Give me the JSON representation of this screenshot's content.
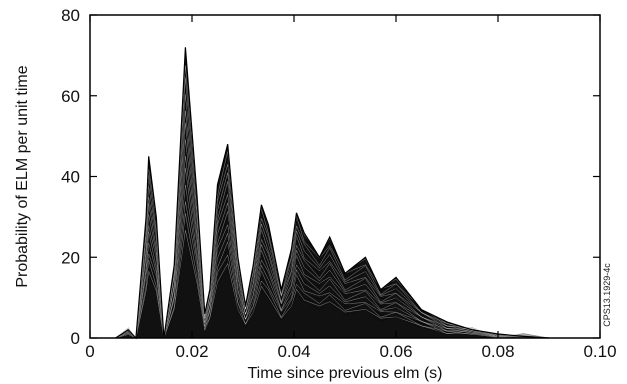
{
  "chart_data": {
    "type": "line",
    "title": "",
    "xlabel": "Time since previous elm (s)",
    "ylabel": "Probability of ELM per unit time",
    "xlim": [
      0,
      0.1
    ],
    "ylim": [
      0,
      80
    ],
    "x_ticks": [
      "0",
      "0.02",
      "0.04",
      "0.06",
      "0.08",
      "0.10"
    ],
    "y_ticks": [
      "0",
      "20",
      "40",
      "60",
      "80"
    ],
    "grid": false,
    "line_color": "#000000",
    "peaks": [
      {
        "x": 0.0115,
        "y": 45
      },
      {
        "x": 0.0187,
        "y": 72
      },
      {
        "x": 0.027,
        "y": 48
      },
      {
        "x": 0.0336,
        "y": 33
      },
      {
        "x": 0.0405,
        "y": 31
      },
      {
        "x": 0.047,
        "y": 25
      },
      {
        "x": 0.054,
        "y": 20
      },
      {
        "x": 0.06,
        "y": 15
      }
    ],
    "series": [
      {
        "values": [
          [
            0.005,
            0
          ],
          [
            0.0075,
            2
          ],
          [
            0.009,
            0
          ],
          [
            0.011,
            30
          ],
          [
            0.0115,
            45
          ],
          [
            0.013,
            30
          ],
          [
            0.0145,
            0
          ],
          [
            0.0165,
            18
          ],
          [
            0.0187,
            72
          ],
          [
            0.021,
            35
          ],
          [
            0.0225,
            6
          ],
          [
            0.0235,
            12
          ],
          [
            0.025,
            38
          ],
          [
            0.027,
            48
          ],
          [
            0.029,
            20
          ],
          [
            0.0305,
            8
          ],
          [
            0.032,
            18
          ],
          [
            0.0336,
            33
          ],
          [
            0.035,
            28
          ],
          [
            0.0375,
            12
          ],
          [
            0.0395,
            22
          ],
          [
            0.0405,
            31
          ],
          [
            0.042,
            26
          ],
          [
            0.045,
            20
          ],
          [
            0.047,
            25
          ],
          [
            0.05,
            16
          ],
          [
            0.054,
            20
          ],
          [
            0.057,
            12
          ],
          [
            0.06,
            15
          ],
          [
            0.065,
            7
          ],
          [
            0.07,
            4
          ],
          [
            0.075,
            2
          ],
          [
            0.08,
            1
          ],
          [
            0.085,
            0.4
          ],
          [
            0.09,
            0
          ]
        ]
      }
    ]
  },
  "side_note": "CPS13.1929-4c"
}
